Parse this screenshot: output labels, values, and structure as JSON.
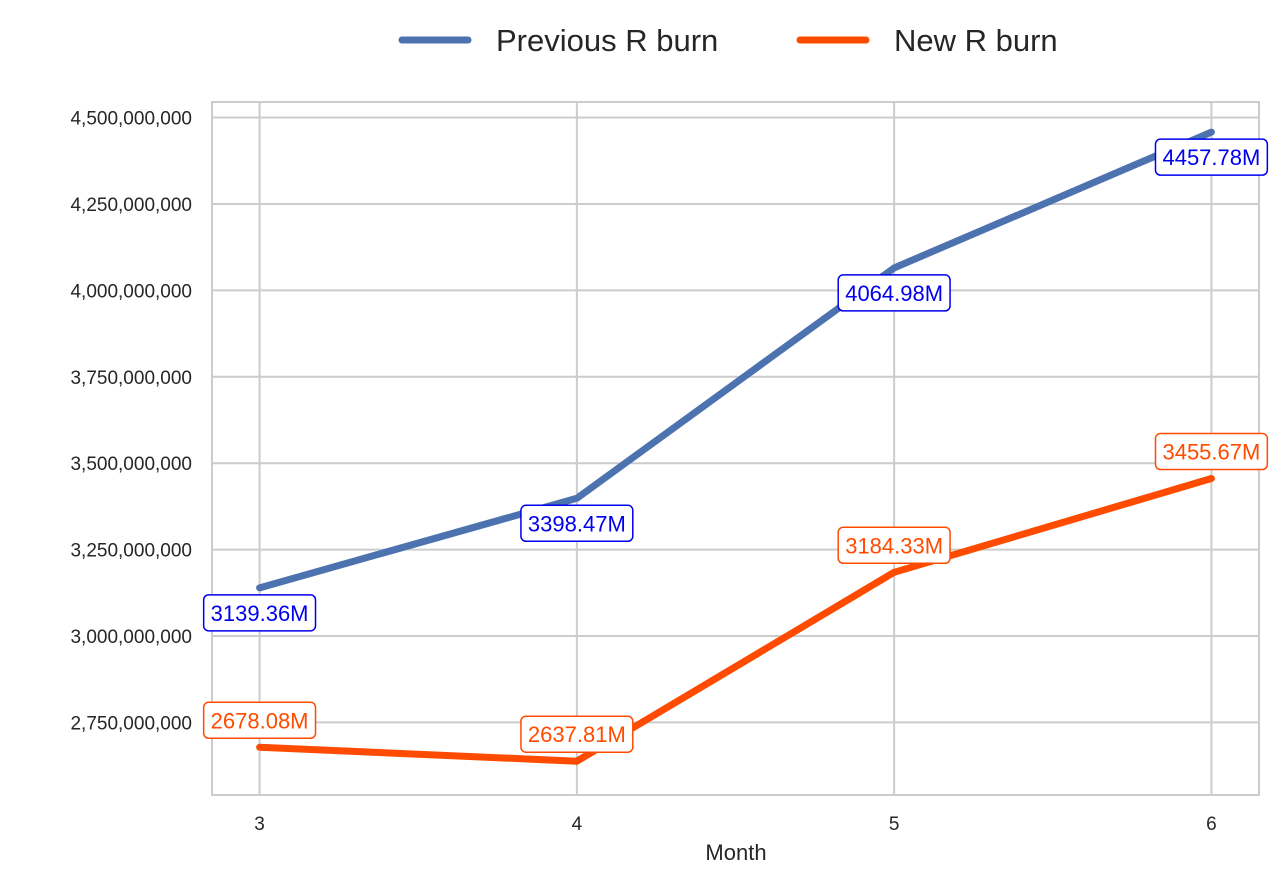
{
  "chart_data": {
    "type": "line",
    "title": "",
    "xlabel": "Month",
    "ylabel": "",
    "x": [
      3,
      4,
      5,
      6
    ],
    "x_tick_labels": [
      "3",
      "4",
      "5",
      "6"
    ],
    "y_ticks": [
      2750000000,
      3000000000,
      3250000000,
      3500000000,
      3750000000,
      4000000000,
      4250000000,
      4500000000
    ],
    "y_tick_labels": [
      "2,750,000,000",
      "3,000,000,000",
      "3,250,000,000",
      "3,500,000,000",
      "3,750,000,000",
      "4,000,000,000",
      "4,250,000,000",
      "4,500,000,000"
    ],
    "xlim": [
      2.85,
      6.15
    ],
    "ylim": [
      2540000000,
      4545000000
    ],
    "grid": true,
    "legend_placement": "top-center",
    "series": [
      {
        "name": "Previous R burn",
        "color": "#4c72b0",
        "label_color": "#0000ee",
        "values": [
          3139360000,
          3398470000,
          4064980000,
          4457780000
        ],
        "data_labels": [
          "3139.36M",
          "3398.47M",
          "4064.98M",
          "4457.78M"
        ],
        "label_position": "below"
      },
      {
        "name": "New R burn",
        "color": "#ff4b00",
        "label_color": "#ff4b00",
        "values": [
          2678080000,
          2637810000,
          3184330000,
          3455670000
        ],
        "data_labels": [
          "2678.08M",
          "2637.81M",
          "3184.33M",
          "3455.67M"
        ],
        "label_position": "above"
      }
    ]
  }
}
